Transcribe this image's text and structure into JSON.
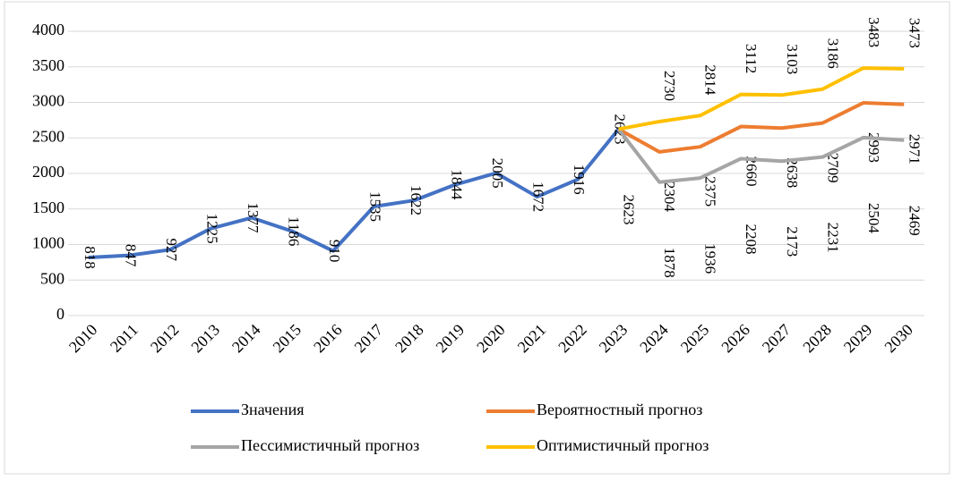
{
  "chart_data": {
    "type": "line",
    "categories": [
      "2010",
      "2011",
      "2012",
      "2013",
      "2014",
      "2015",
      "2016",
      "2017",
      "2018",
      "2019",
      "2020",
      "2021",
      "2022",
      "2023",
      "2024",
      "2025",
      "2026",
      "2027",
      "2028",
      "2029",
      "2030"
    ],
    "series": [
      {
        "name": "Значения",
        "color": "#4472c4",
        "values": [
          818,
          847,
          927,
          1225,
          1377,
          1186,
          910,
          1535,
          1622,
          1844,
          2005,
          1672,
          1916,
          2623,
          null,
          null,
          null,
          null,
          null,
          null,
          null
        ]
      },
      {
        "name": "Вероятностный прогноз",
        "color": "#ed7d31",
        "values": [
          null,
          null,
          null,
          null,
          null,
          null,
          null,
          null,
          null,
          null,
          null,
          null,
          null,
          2623,
          2304,
          2375,
          2660,
          2638,
          2709,
          2993,
          2971
        ]
      },
      {
        "name": "Пессимистичный прогноз",
        "color": "#a5a5a5",
        "values": [
          null,
          null,
          null,
          null,
          null,
          null,
          null,
          null,
          null,
          null,
          null,
          null,
          null,
          2623,
          1878,
          1936,
          2208,
          2173,
          2231,
          2504,
          2469
        ]
      },
      {
        "name": "Оптимистичный прогноз",
        "color": "#ffc000",
        "values": [
          null,
          null,
          null,
          null,
          null,
          null,
          null,
          null,
          null,
          null,
          null,
          null,
          null,
          2623,
          2730,
          2814,
          3112,
          3103,
          3186,
          3483,
          3473
        ]
      }
    ],
    "ylim": [
      0,
      4000
    ],
    "yticks": [
      0,
      500,
      1000,
      1500,
      2000,
      2500,
      3000,
      3500,
      4000
    ],
    "grid": true,
    "legend": "bottom"
  }
}
